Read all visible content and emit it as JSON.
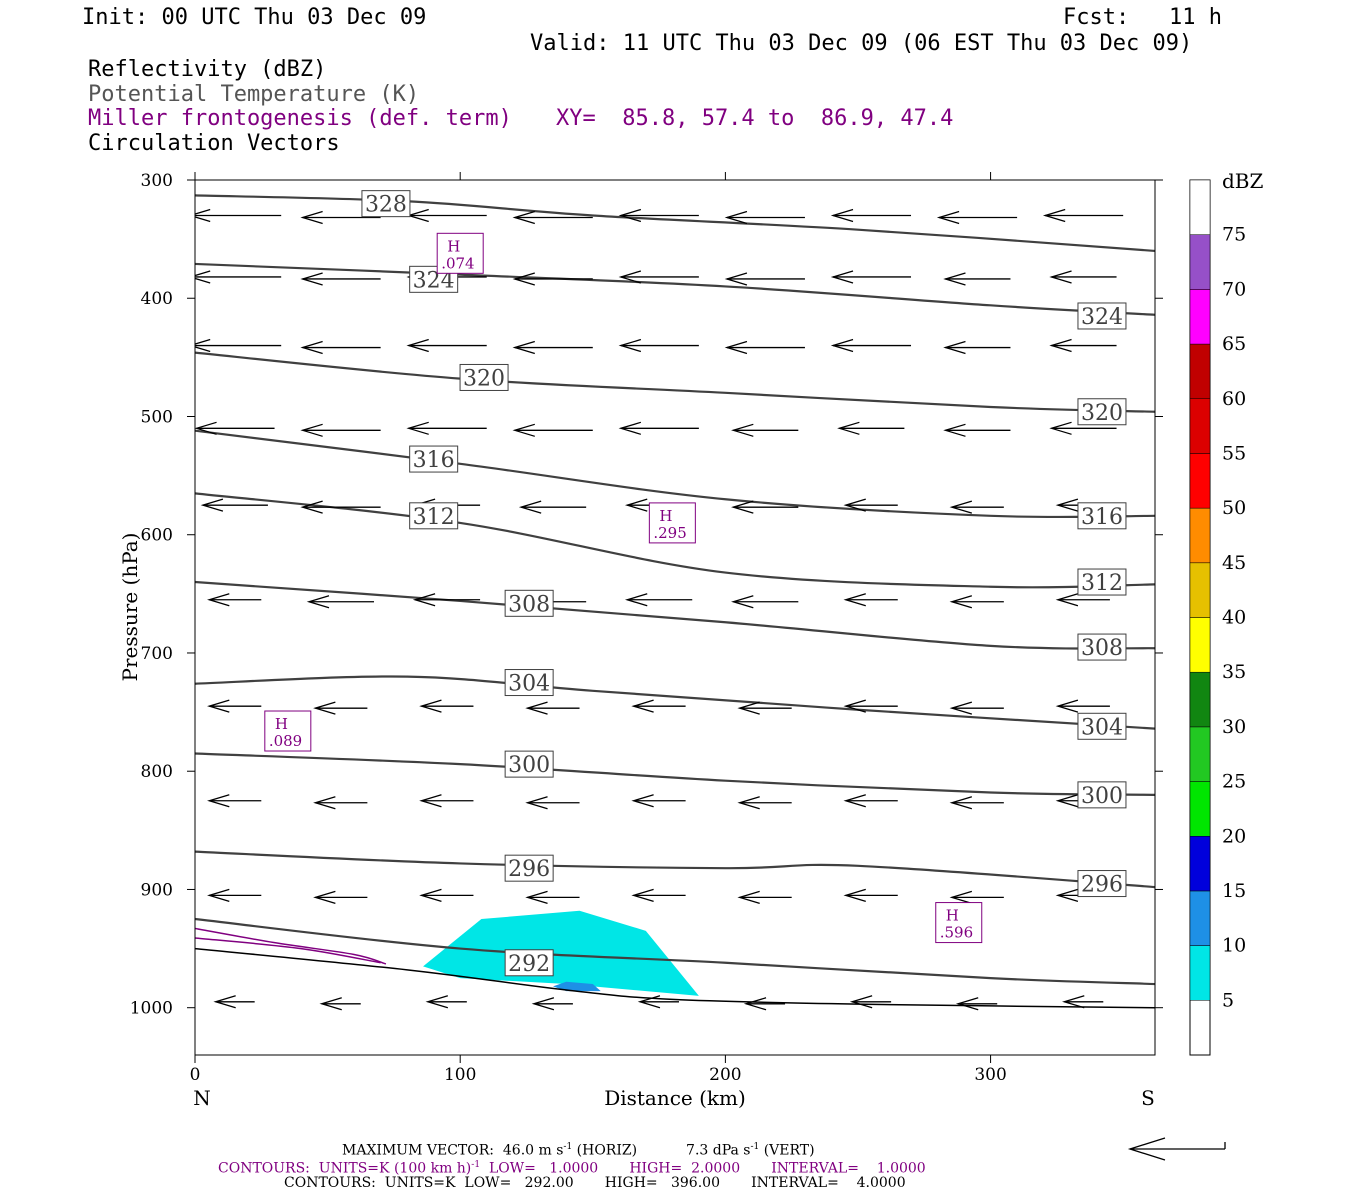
{
  "header": {
    "init": "Init: 00 UTC Thu 03 Dec 09",
    "fcst": "Fcst:   11 h",
    "valid": "Valid: 11 UTC Thu 03 Dec 09 (06 EST Thu 03 Dec 09)",
    "field1": "Reflectivity (dBZ)",
    "field2": "Potential Temperature (K)",
    "field3": "Miller frontogenesis (def. term)",
    "xy": "XY=  85.8, 57.4 to  86.9, 47.4",
    "field4": "Circulation Vectors"
  },
  "colors": {
    "purple": "#800080",
    "theta": "#404040",
    "cyan": "#00e6e6",
    "blue": "#2f8be0"
  },
  "footer": {
    "max_vector": "MAXIMUM VECTOR:  46.0 m s",
    "max_vector_horiz": "(HORIZ)",
    "max_vector_vert": "7.3 dPa s",
    "max_vector_vert_tail": "(VERT)",
    "contours1": "CONTOURS:  UNITS=K (100 km h)",
    "contours1_tail": "LOW=   1.0000       HIGH=  2.0000       INTERVAL=    1.0000",
    "contours2": "CONTOURS:  UNITS=K  LOW=   292.00       HIGH=   396.00       INTERVAL=    4.0000",
    "exp": "-1"
  },
  "chart_data": {
    "type": "cross-section",
    "xlabel": "Distance (km)",
    "ylabel": "Pressure (hPa)",
    "xlim": [
      0,
      362
    ],
    "ylim": [
      1040,
      300
    ],
    "x_ticks": [
      0,
      100,
      200,
      300
    ],
    "y_ticks": [
      300,
      400,
      500,
      600,
      700,
      800,
      900,
      1000
    ],
    "x_end_labels": {
      "left": "N",
      "right": "S"
    },
    "theta_contours": [
      {
        "label": "328",
        "points": [
          [
            0,
            313
          ],
          [
            80,
            318
          ],
          [
            150,
            330
          ],
          [
            250,
            342
          ],
          [
            362,
            360
          ]
        ],
        "labels_at": [
          [
            72,
            320
          ]
        ]
      },
      {
        "label": "324",
        "points": [
          [
            0,
            371
          ],
          [
            100,
            380
          ],
          [
            200,
            390
          ],
          [
            300,
            406
          ],
          [
            362,
            414
          ]
        ],
        "labels_at": [
          [
            90,
            384
          ],
          [
            342,
            415
          ]
        ]
      },
      {
        "label": "320",
        "points": [
          [
            0,
            446
          ],
          [
            100,
            468
          ],
          [
            200,
            480
          ],
          [
            300,
            492
          ],
          [
            362,
            496
          ]
        ],
        "labels_at": [
          [
            109,
            467
          ],
          [
            342,
            496
          ]
        ]
      },
      {
        "label": "316",
        "points": [
          [
            0,
            512
          ],
          [
            100,
            540
          ],
          [
            200,
            570
          ],
          [
            300,
            584
          ],
          [
            362,
            584
          ]
        ],
        "labels_at": [
          [
            90,
            536
          ],
          [
            342,
            584
          ]
        ]
      },
      {
        "label": "312",
        "points": [
          [
            0,
            565
          ],
          [
            100,
            590
          ],
          [
            200,
            632
          ],
          [
            300,
            644
          ],
          [
            362,
            642
          ]
        ],
        "labels_at": [
          [
            90,
            584
          ],
          [
            342,
            640
          ]
        ]
      },
      {
        "label": "308",
        "points": [
          [
            0,
            640
          ],
          [
            100,
            656
          ],
          [
            200,
            674
          ],
          [
            300,
            694
          ],
          [
            362,
            696
          ]
        ],
        "labels_at": [
          [
            126,
            658
          ],
          [
            342,
            695
          ]
        ]
      },
      {
        "label": "304",
        "points": [
          [
            0,
            726
          ],
          [
            80,
            720
          ],
          [
            150,
            732
          ],
          [
            250,
            748
          ],
          [
            362,
            764
          ]
        ],
        "labels_at": [
          [
            126,
            725
          ],
          [
            342,
            762
          ]
        ]
      },
      {
        "label": "300",
        "points": [
          [
            0,
            785
          ],
          [
            100,
            794
          ],
          [
            200,
            808
          ],
          [
            300,
            818
          ],
          [
            362,
            820
          ]
        ],
        "labels_at": [
          [
            126,
            794
          ],
          [
            342,
            820
          ]
        ]
      },
      {
        "label": "296",
        "points": [
          [
            0,
            868
          ],
          [
            100,
            878
          ],
          [
            200,
            882
          ],
          [
            250,
            880
          ],
          [
            362,
            898
          ]
        ],
        "labels_at": [
          [
            126,
            882
          ],
          [
            342,
            895
          ]
        ]
      },
      {
        "label": "292",
        "points": [
          [
            0,
            925
          ],
          [
            100,
            950
          ],
          [
            200,
            962
          ],
          [
            300,
            975
          ],
          [
            362,
            980
          ]
        ],
        "labels_at": [
          [
            126,
            962
          ]
        ]
      }
    ],
    "frontogenesis_maxima": [
      {
        "label": "H",
        "value": ".074",
        "x": 100,
        "p": 362
      },
      {
        "label": "H",
        "value": ".295",
        "x": 180,
        "p": 590
      },
      {
        "label": "H",
        "value": ".089",
        "x": 35,
        "p": 766
      },
      {
        "label": "H",
        "value": ".596",
        "x": 288,
        "p": 928
      }
    ],
    "reflectivity_areas": [
      {
        "dbz": 5,
        "polygon": [
          [
            86,
            965
          ],
          [
            108,
            925
          ],
          [
            145,
            918
          ],
          [
            170,
            935
          ],
          [
            190,
            990
          ],
          [
            140,
            980
          ],
          [
            100,
            975
          ]
        ]
      },
      {
        "dbz": 10,
        "polygon": [
          [
            135,
            982
          ],
          [
            140,
            978
          ],
          [
            150,
            980
          ],
          [
            153,
            986
          ],
          [
            140,
            986
          ]
        ]
      }
    ],
    "colorbar": {
      "title": "dBZ",
      "labels": [
        "5",
        "10",
        "15",
        "20",
        "25",
        "30",
        "35",
        "40",
        "45",
        "50",
        "55",
        "60",
        "65",
        "70",
        "75"
      ],
      "colors": [
        "#00e6e6",
        "#1e90e6",
        "#0000dc",
        "#00e600",
        "#22c822",
        "#118611",
        "#ffff00",
        "#e6c000",
        "#ff8c00",
        "#ff0000",
        "#dc0000",
        "#c00000",
        "#ff00ff",
        "#9650c8",
        "#ffffff"
      ]
    },
    "wind_vectors_rows": [
      {
        "p": 330,
        "lens": [
          0.7,
          0.6,
          0.6,
          0.6,
          0.6,
          0.6,
          0.6,
          0.6,
          0.6
        ]
      },
      {
        "p": 382,
        "lens": [
          0.7,
          0.6,
          0.6,
          0.6,
          0.6,
          0.6,
          0.6,
          0.5,
          0.5
        ]
      },
      {
        "p": 440,
        "lens": [
          0.7,
          0.6,
          0.6,
          0.6,
          0.6,
          0.6,
          0.6,
          0.5,
          0.5
        ]
      },
      {
        "p": 510,
        "lens": [
          0.6,
          0.6,
          0.6,
          0.6,
          0.6,
          0.5,
          0.5,
          0.5,
          0.5
        ]
      },
      {
        "p": 575,
        "lens": [
          0.5,
          0.6,
          0.5,
          0.5,
          0.5,
          0.5,
          0.4,
          0.4,
          0.4
        ]
      },
      {
        "p": 655,
        "lens": [
          0.4,
          0.5,
          0.5,
          0.5,
          0.5,
          0.5,
          0.4,
          0.4,
          0.4
        ]
      },
      {
        "p": 745,
        "lens": [
          0.4,
          0.4,
          0.4,
          0.4,
          0.4,
          0.4,
          0.4,
          0.4,
          0.4
        ]
      },
      {
        "p": 825,
        "lens": [
          0.4,
          0.4,
          0.4,
          0.4,
          0.4,
          0.4,
          0.4,
          0.4,
          0.4
        ]
      },
      {
        "p": 905,
        "lens": [
          0.4,
          0.4,
          0.4,
          0.4,
          0.4,
          0.4,
          0.4,
          0.4,
          0.4
        ]
      },
      {
        "p": 995,
        "lens": [
          0.3,
          0.3,
          0.3,
          0.3,
          0.3,
          0.3,
          0.3,
          0.3,
          0.3
        ]
      }
    ]
  }
}
